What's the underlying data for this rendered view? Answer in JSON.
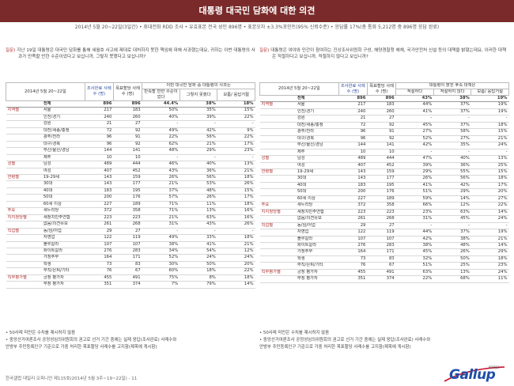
{
  "title": "대통령 대국민 담화에 대한 의견",
  "subtitle": "2014년 5월 20~22일(3일간) • 휴대전화 RDD 조사 • 유효표본 전국 성인 896명 • 표본오차 ±3.3%포인트(95% 신뢰수준) • 응답률 17%(총 통화 5,212명 중 896명 응답 완료)",
  "footer": "한국갤럽 데일리 오피니언 제115호(2014년 5월 3주~19~22일) - 11",
  "logo": {
    "brand": "Gallup",
    "small": "KOREA",
    "color": "#1f4fa8"
  },
  "colors": {
    "title_bg": "#7a2a2a",
    "accent_red": "#b03030",
    "accent_blue": "#2a4aa0"
  },
  "notes": [
    "• 50사례 미만은 수치를 제시하지 않음",
    "• 중앙선거여론조사 공정성심의위원회의 권고로 선거 기간 중에는 실제 응답(조사완료) 사례수와",
    "  안방부 주민등록인구 기준으로 가중 처리한 목표할당 사례수를 고지함(제목에 게시함)"
  ],
  "left": {
    "question_label": "질문)",
    "question": "지난 19일 대통령은 대국민 담화를 통해 세월호 사고에 제대로 대처하지 못한 책임에 대해 사과했는데요, 귀하는 이번 대통령의 사과가 만족할 만한 수준이었다고 보십니까, 그렇지 못했다고 보십니까?",
    "header": {
      "period": "2014년 5월 20~22일",
      "col1": "조사완료 사례수 (명)",
      "col2": "목표할당 사례수 (명)",
      "group": "이번 대국민 담화 중 대통령의 사과는",
      "c3": "만족할 만한 수준이었다",
      "c4": "그렇지 못했다",
      "c5": "모름/ 응답거절"
    },
    "rows": [
      {
        "g": "",
        "l": "전체",
        "a": "896",
        "b": "896",
        "c": "44.4%",
        "d": "38%",
        "e": "18%",
        "cls": "total"
      },
      {
        "g": "지역별",
        "l": "서울",
        "a": "217",
        "b": "183",
        "c": "50%",
        "d": "35%",
        "e": "15%",
        "cls": "sec"
      },
      {
        "g": "",
        "l": "인천/경기",
        "a": "240",
        "b": "260",
        "c": "40%",
        "d": "39%",
        "e": "22%"
      },
      {
        "g": "",
        "l": "강원",
        "a": "21",
        "b": "27",
        "c": "-",
        "d": "-",
        "e": "-"
      },
      {
        "g": "",
        "l": "대전/세종/충청",
        "a": "72",
        "b": "92",
        "c": "49%",
        "d": "42%",
        "e": "9%"
      },
      {
        "g": "",
        "l": "광주/전라",
        "a": "96",
        "b": "91",
        "c": "22%",
        "d": "56%",
        "e": "22%"
      },
      {
        "g": "",
        "l": "대구/경북",
        "a": "96",
        "b": "92",
        "c": "62%",
        "d": "21%",
        "e": "17%"
      },
      {
        "g": "",
        "l": "부산/울산/경남",
        "a": "144",
        "b": "141",
        "c": "48%",
        "d": "29%",
        "e": "23%"
      },
      {
        "g": "",
        "l": "제주",
        "a": "10",
        "b": "10",
        "c": "-",
        "d": "-",
        "e": "-"
      },
      {
        "g": "성별",
        "l": "남성",
        "a": "489",
        "b": "444",
        "c": "46%",
        "d": "40%",
        "e": "13%",
        "cls": "sec"
      },
      {
        "g": "",
        "l": "여성",
        "a": "407",
        "b": "452",
        "c": "43%",
        "d": "36%",
        "e": "21%"
      },
      {
        "g": "연령별",
        "l": "19-29세",
        "a": "143",
        "b": "159",
        "c": "26%",
        "d": "56%",
        "e": "18%",
        "cls": "sec"
      },
      {
        "g": "",
        "l": "30대",
        "a": "143",
        "b": "177",
        "c": "21%",
        "d": "53%",
        "e": "26%"
      },
      {
        "g": "",
        "l": "40대",
        "a": "183",
        "b": "195",
        "c": "37%",
        "d": "48%",
        "e": "15%"
      },
      {
        "g": "",
        "l": "50대",
        "a": "200",
        "b": "176",
        "c": "57%",
        "d": "26%",
        "e": "17%"
      },
      {
        "g": "",
        "l": "60세 이상",
        "a": "227",
        "b": "189",
        "c": "71%",
        "d": "11%",
        "e": "18%"
      },
      {
        "g": "주요",
        "l": "새누리당",
        "a": "372",
        "b": "358",
        "c": "71%",
        "d": "13%",
        "e": "16%",
        "cls": "sec"
      },
      {
        "g": "지지정당별",
        "l": "새정치민주연합",
        "a": "223",
        "b": "223",
        "c": "21%",
        "d": "63%",
        "e": "16%"
      },
      {
        "g": "",
        "l": "없음/의견유보",
        "a": "261",
        "b": "268",
        "c": "31%",
        "d": "43%",
        "e": "26%"
      },
      {
        "g": "직업별",
        "l": "농/임/어업",
        "a": "29",
        "b": "27",
        "c": "-",
        "d": "-",
        "e": "-",
        "cls": "sec"
      },
      {
        "g": "",
        "l": "자영업",
        "a": "122",
        "b": "119",
        "c": "49%",
        "d": "33%",
        "e": "18%"
      },
      {
        "g": "",
        "l": "블루칼라",
        "a": "107",
        "b": "107",
        "c": "38%",
        "d": "41%",
        "e": "21%"
      },
      {
        "g": "",
        "l": "화이트칼라",
        "a": "276",
        "b": "283",
        "c": "34%",
        "d": "54%",
        "e": "12%"
      },
      {
        "g": "",
        "l": "가정주부",
        "a": "164",
        "b": "171",
        "c": "52%",
        "d": "24%",
        "e": "24%"
      },
      {
        "g": "",
        "l": "학생",
        "a": "73",
        "b": "83",
        "c": "30%",
        "d": "50%",
        "e": "20%"
      },
      {
        "g": "",
        "l": "무직/은퇴/기타",
        "a": "76",
        "b": "67",
        "c": "60%",
        "d": "18%",
        "e": "22%"
      },
      {
        "g": "직무평가별",
        "l": "긍정 평가자",
        "a": "455",
        "b": "491",
        "c": "75%",
        "d": "8%",
        "e": "18%",
        "cls": "sec"
      },
      {
        "g": "",
        "l": "부정 평가자",
        "a": "351",
        "b": "374",
        "c": "7%",
        "d": "79%",
        "e": "14%"
      }
    ]
  },
  "right": {
    "question_label": "질문)",
    "question": "대통령은 여야와 민간이 참여하는 진상조사위원회 구성, 해양경찰청 해체, 국가안전처 신설 등의 대책을 밝혔는데요, 이러한 대책은 적절하다고 보십니까, 적절하지 않다고 보십니까?",
    "header": {
      "period": "2014년 5월 20~22일",
      "col1": "조사완료 사례수 (명)",
      "col2": "목표할당 사례수 (명)",
      "group": "대통령이 밝힌 후속 대책은",
      "c3": "적절하다",
      "c4": "적절하지 않다",
      "c5": "모름/ 응답거절"
    },
    "rows": [
      {
        "g": "",
        "l": "전체",
        "a": "896",
        "b": "896",
        "c": "43%",
        "d": "38%",
        "e": "19%",
        "cls": "total"
      },
      {
        "g": "지역별",
        "l": "서울",
        "a": "217",
        "b": "183",
        "c": "44%",
        "d": "37%",
        "e": "19%",
        "cls": "sec"
      },
      {
        "g": "",
        "l": "인천/경기",
        "a": "240",
        "b": "260",
        "c": "41%",
        "d": "37%",
        "e": "19%"
      },
      {
        "g": "",
        "l": "강원",
        "a": "21",
        "b": "27",
        "c": "-",
        "d": "-",
        "e": "-"
      },
      {
        "g": "",
        "l": "대전/세종/충청",
        "a": "72",
        "b": "92",
        "c": "45%",
        "d": "37%",
        "e": "18%"
      },
      {
        "g": "",
        "l": "광주/전라",
        "a": "96",
        "b": "91",
        "c": "27%",
        "d": "58%",
        "e": "15%"
      },
      {
        "g": "",
        "l": "대구/경북",
        "a": "96",
        "b": "92",
        "c": "52%",
        "d": "27%",
        "e": "21%"
      },
      {
        "g": "",
        "l": "부산/울산/경남",
        "a": "144",
        "b": "141",
        "c": "42%",
        "d": "35%",
        "e": "24%"
      },
      {
        "g": "",
        "l": "제주",
        "a": "10",
        "b": "10",
        "c": "-",
        "d": "-",
        "e": "-"
      },
      {
        "g": "성별",
        "l": "남성",
        "a": "489",
        "b": "444",
        "c": "47%",
        "d": "40%",
        "e": "13%",
        "cls": "sec"
      },
      {
        "g": "",
        "l": "여성",
        "a": "407",
        "b": "452",
        "c": "39%",
        "d": "36%",
        "e": "25%"
      },
      {
        "g": "연령별",
        "l": "19-29세",
        "a": "143",
        "b": "159",
        "c": "29%",
        "d": "55%",
        "e": "15%",
        "cls": "sec"
      },
      {
        "g": "",
        "l": "30대",
        "a": "143",
        "b": "177",
        "c": "26%",
        "d": "56%",
        "e": "18%"
      },
      {
        "g": "",
        "l": "40대",
        "a": "183",
        "b": "195",
        "c": "41%",
        "d": "42%",
        "e": "17%"
      },
      {
        "g": "",
        "l": "50대",
        "a": "200",
        "b": "176",
        "c": "51%",
        "d": "29%",
        "e": "20%"
      },
      {
        "g": "",
        "l": "60세 이상",
        "a": "227",
        "b": "189",
        "c": "59%",
        "d": "14%",
        "e": "27%"
      },
      {
        "g": "주요",
        "l": "새누리당",
        "a": "372",
        "b": "358",
        "c": "66%",
        "d": "12%",
        "e": "22%",
        "cls": "sec"
      },
      {
        "g": "지지정당별",
        "l": "새정치민주연합",
        "a": "223",
        "b": "223",
        "c": "23%",
        "d": "63%",
        "e": "14%"
      },
      {
        "g": "",
        "l": "없음/의견유보",
        "a": "261",
        "b": "268",
        "c": "31%",
        "d": "45%",
        "e": "24%"
      },
      {
        "g": "직업별",
        "l": "농/임/어업",
        "a": "29",
        "b": "27",
        "c": "-",
        "d": "-",
        "e": "-",
        "cls": "sec"
      },
      {
        "g": "",
        "l": "자영업",
        "a": "122",
        "b": "119",
        "c": "44%",
        "d": "37%",
        "e": "19%"
      },
      {
        "g": "",
        "l": "블루칼라",
        "a": "107",
        "b": "107",
        "c": "42%",
        "d": "38%",
        "e": "21%"
      },
      {
        "g": "",
        "l": "화이트칼라",
        "a": "276",
        "b": "283",
        "c": "38%",
        "d": "48%",
        "e": "14%"
      },
      {
        "g": "",
        "l": "가정주부",
        "a": "164",
        "b": "171",
        "c": "45%",
        "d": "26%",
        "e": "29%"
      },
      {
        "g": "",
        "l": "학생",
        "a": "73",
        "b": "83",
        "c": "32%",
        "d": "50%",
        "e": "18%"
      },
      {
        "g": "",
        "l": "무직/은퇴/기타",
        "a": "76",
        "b": "67",
        "c": "51%",
        "d": "25%",
        "e": "23%"
      },
      {
        "g": "직무평가별",
        "l": "긍정 평가자",
        "a": "455",
        "b": "491",
        "c": "63%",
        "d": "13%",
        "e": "24%",
        "cls": "sec"
      },
      {
        "g": "",
        "l": "부정 평가자",
        "a": "351",
        "b": "374",
        "c": "22%",
        "d": "68%",
        "e": "11%"
      }
    ]
  }
}
